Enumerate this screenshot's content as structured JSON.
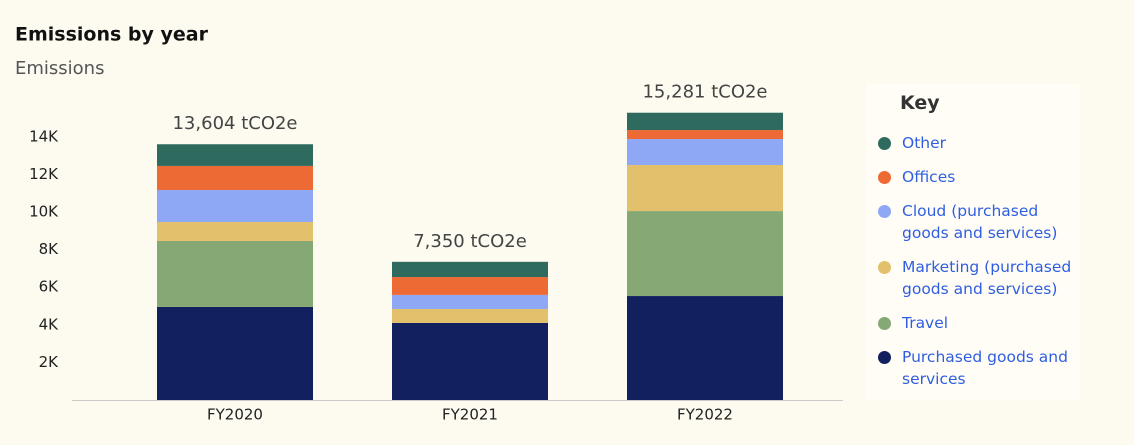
{
  "chart_data": {
    "type": "stacked_bar",
    "title": "Emissions by year",
    "subtitle": "Emissions",
    "categories": [
      "FY2020",
      "FY2021",
      "FY2022"
    ],
    "series": [
      {
        "name": "Purchased goods and services",
        "color": "#122060",
        "values": [
          4950,
          4100,
          5530
        ]
      },
      {
        "name": "Travel",
        "color": "#86a874",
        "values": [
          3510,
          0,
          4520
        ]
      },
      {
        "name": "Marketing (purchased goods and services)",
        "color": "#e3c06c",
        "values": [
          1010,
          740,
          2450
        ]
      },
      {
        "name": "Cloud (purchased goods and services)",
        "color": "#8ea8f5",
        "values": [
          1700,
          750,
          1380
        ]
      },
      {
        "name": "Offices",
        "color": "#ee6a35",
        "values": [
          1280,
          950,
          480
        ]
      },
      {
        "name": "Other",
        "color": "#2e6b5e",
        "values": [
          1154,
          810,
          921
        ]
      }
    ],
    "totals": {
      "values": [
        13604,
        7350,
        15281
      ],
      "value_labels": [
        "13,604 tCO2e",
        "7,350 tCO2e",
        "15,281 tCO2e"
      ]
    },
    "ylim": [
      0,
      16000
    ],
    "yticks": [
      {
        "value": 2000,
        "label": "2K"
      },
      {
        "value": 4000,
        "label": "4K"
      },
      {
        "value": 6000,
        "label": "6K"
      },
      {
        "value": 8000,
        "label": "8K"
      },
      {
        "value": 10000,
        "label": "10K"
      },
      {
        "value": 12000,
        "label": "12K"
      },
      {
        "value": 14000,
        "label": "14K"
      }
    ],
    "legend": {
      "title": "Key",
      "position": "right"
    }
  }
}
